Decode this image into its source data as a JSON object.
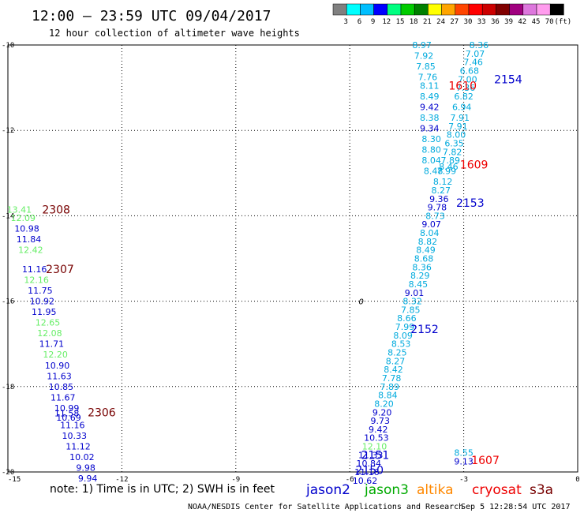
{
  "header": {
    "title": "12:00 – 23:59 UTC 09/04/2017",
    "subtitle": "12 hour collection of altimeter wave heights"
  },
  "colorbar": {
    "labels": [
      "3",
      "6",
      "9",
      "12",
      "15",
      "18",
      "21",
      "24",
      "27",
      "30",
      "33",
      "36",
      "39",
      "42",
      "45",
      "70",
      "(ft)"
    ],
    "colors": [
      "#808080",
      "#00ffff",
      "#00bfff",
      "#0000ff",
      "#00ff80",
      "#00cc00",
      "#008000",
      "#ffff00",
      "#ffa500",
      "#ff4500",
      "#ff0000",
      "#cc0000",
      "#800000",
      "#a0007f",
      "#dd77dd",
      "#ff9cee",
      "#000000"
    ]
  },
  "footer": {
    "note": "note: 1) Time is in UTC; 2) SWH is in feet",
    "credit": "NOAA/NESDIS Center for Satellite Applications and Research",
    "timestamp": "Sep  5 12:28:54 UTC 2017"
  },
  "legend": [
    {
      "name": "jason2",
      "color": "#0000cc"
    },
    {
      "name": "jason3",
      "color": "#00aa00"
    },
    {
      "name": "altika",
      "color": "#ff8800"
    },
    {
      "name": "cryosat",
      "color": "#ee0000"
    },
    {
      "name": "s3a",
      "color": "#770000"
    }
  ],
  "chart_data": {
    "type": "scatter",
    "title": "12:00 – 23:59 UTC 09/04/2017",
    "xlim": [
      -15,
      0
    ],
    "ylim": [
      -20,
      -10
    ],
    "x_ticks": [
      -15,
      -12,
      -9,
      -6,
      -3,
      0
    ],
    "y_ticks": [
      -10,
      -12,
      -14,
      -16,
      -18,
      -20
    ],
    "grid": true,
    "units": "ft",
    "symbols": [
      {
        "text": "0",
        "x": -5.7,
        "y": -16.0,
        "color": "#000000"
      }
    ],
    "track_labels": [
      {
        "text": "2308",
        "x": -14.1,
        "y": -13.85,
        "color": "#770000"
      },
      {
        "text": "2307",
        "x": -14.0,
        "y": -15.25,
        "color": "#770000"
      },
      {
        "text": "2306",
        "x": -12.9,
        "y": -18.6,
        "color": "#770000"
      },
      {
        "text": "1610",
        "x": -3.4,
        "y": -10.95,
        "color": "#ee0000"
      },
      {
        "text": "2154",
        "x": -2.2,
        "y": -10.8,
        "color": "#0000cc"
      },
      {
        "text": "1609",
        "x": -3.1,
        "y": -12.8,
        "color": "#ee0000"
      },
      {
        "text": "2153",
        "x": -3.2,
        "y": -13.7,
        "color": "#0000cc"
      },
      {
        "text": "2152",
        "x": -4.4,
        "y": -16.65,
        "color": "#0000cc"
      },
      {
        "text": "2151",
        "x": -5.7,
        "y": -19.6,
        "color": "#0000cc"
      },
      {
        "text": "2150",
        "x": -5.85,
        "y": -19.95,
        "color": "#0000cc"
      },
      {
        "text": "1607",
        "x": -2.8,
        "y": -19.72,
        "color": "#ee0000"
      }
    ],
    "series": [
      {
        "name": "2308",
        "points": [
          {
            "x": -14.7,
            "y": -13.85,
            "v": "13.41",
            "c": "#66ee66"
          },
          {
            "x": -14.6,
            "y": -14.05,
            "v": "12.09",
            "c": "#66ee66"
          },
          {
            "x": -14.5,
            "y": -14.3,
            "v": "10.98",
            "c": "#0000cc"
          },
          {
            "x": -14.45,
            "y": -14.55,
            "v": "11.84",
            "c": "#0000cc"
          },
          {
            "x": -14.4,
            "y": -14.8,
            "v": "12.42",
            "c": "#66ee66"
          }
        ]
      },
      {
        "name": "2307",
        "points": [
          {
            "x": -14.3,
            "y": -15.25,
            "v": "11.16",
            "c": "#0000cc"
          },
          {
            "x": -14.25,
            "y": -15.5,
            "v": "12.16",
            "c": "#66ee66"
          },
          {
            "x": -14.15,
            "y": -15.75,
            "v": "11.75",
            "c": "#0000cc"
          },
          {
            "x": -14.1,
            "y": -16.0,
            "v": "10.92",
            "c": "#0000cc"
          },
          {
            "x": -14.05,
            "y": -16.25,
            "v": "11.95",
            "c": "#0000cc"
          },
          {
            "x": -13.95,
            "y": -16.5,
            "v": "12.65",
            "c": "#66ee66"
          },
          {
            "x": -13.9,
            "y": -16.75,
            "v": "12.08",
            "c": "#66ee66"
          },
          {
            "x": -13.85,
            "y": -17.0,
            "v": "11.71",
            "c": "#0000cc"
          },
          {
            "x": -13.75,
            "y": -17.25,
            "v": "12.20",
            "c": "#66ee66"
          },
          {
            "x": -13.7,
            "y": -17.5,
            "v": "10.90",
            "c": "#0000cc"
          },
          {
            "x": -13.65,
            "y": -17.75,
            "v": "11.63",
            "c": "#0000cc"
          },
          {
            "x": -13.6,
            "y": -18.0,
            "v": "10.85",
            "c": "#0000cc"
          },
          {
            "x": -13.55,
            "y": -18.25,
            "v": "11.67",
            "c": "#0000cc"
          }
        ]
      },
      {
        "name": "2306",
        "points": [
          {
            "x": -13.45,
            "y": -18.5,
            "v": "10.99",
            "c": "#0000cc"
          },
          {
            "x": -13.4,
            "y": -18.72,
            "v": "10.69",
            "c": "#0000cc"
          },
          {
            "x": -13.45,
            "y": -18.62,
            "v": "11.58",
            "c": "#0000cc"
          },
          {
            "x": -13.3,
            "y": -18.9,
            "v": "11.16",
            "c": "#0000cc"
          },
          {
            "x": -13.25,
            "y": -19.15,
            "v": "10.33",
            "c": "#0000cc"
          },
          {
            "x": -13.15,
            "y": -19.4,
            "v": "11.12",
            "c": "#0000cc"
          },
          {
            "x": -13.05,
            "y": -19.65,
            "v": "10.02",
            "c": "#0000cc"
          },
          {
            "x": -12.95,
            "y": -19.9,
            "v": "9.98",
            "c": "#0000cc"
          },
          {
            "x": -12.9,
            "y": -20.15,
            "v": "9.94",
            "c": "#0000cc"
          }
        ]
      },
      {
        "name": "2154",
        "points": [
          {
            "x": -2.6,
            "y": -10.0,
            "v": "8.36",
            "c": "#00aadd"
          },
          {
            "x": -2.7,
            "y": -10.2,
            "v": "7.07",
            "c": "#00aadd"
          },
          {
            "x": -2.75,
            "y": -10.4,
            "v": "7.46",
            "c": "#00aadd"
          },
          {
            "x": -2.85,
            "y": -10.6,
            "v": "6.68",
            "c": "#00aadd"
          },
          {
            "x": -2.9,
            "y": -10.8,
            "v": "7.00",
            "c": "#00aadd"
          },
          {
            "x": -2.95,
            "y": -11.0,
            "v": "7.36",
            "c": "#00aadd"
          },
          {
            "x": -3.0,
            "y": -11.2,
            "v": "6.82",
            "c": "#00aadd"
          },
          {
            "x": -3.05,
            "y": -11.45,
            "v": "6.94",
            "c": "#00aadd"
          },
          {
            "x": -3.1,
            "y": -11.7,
            "v": "7.91",
            "c": "#00aadd"
          },
          {
            "x": -3.15,
            "y": -11.9,
            "v": "7.91",
            "c": "#00aadd"
          },
          {
            "x": -3.2,
            "y": -12.1,
            "v": "8.00",
            "c": "#00aadd"
          },
          {
            "x": -3.25,
            "y": -12.3,
            "v": "6.35",
            "c": "#00aadd"
          },
          {
            "x": -3.3,
            "y": -12.5,
            "v": "7.82",
            "c": "#00aadd"
          },
          {
            "x": -3.35,
            "y": -12.7,
            "v": "7.89",
            "c": "#00aadd"
          },
          {
            "x": -3.4,
            "y": -12.85,
            "v": "8.46",
            "c": "#00aadd"
          },
          {
            "x": -3.45,
            "y": -12.95,
            "v": "7.99",
            "c": "#00aadd"
          }
        ]
      },
      {
        "name": "1610",
        "points": [
          {
            "x": -4.1,
            "y": -10.0,
            "v": "8.97",
            "c": "#00aadd"
          },
          {
            "x": -4.05,
            "y": -10.25,
            "v": "7.92",
            "c": "#00aadd"
          },
          {
            "x": -4.0,
            "y": -10.5,
            "v": "7.85",
            "c": "#00aadd"
          },
          {
            "x": -3.95,
            "y": -10.75,
            "v": "7.76",
            "c": "#00aadd"
          },
          {
            "x": -3.9,
            "y": -10.95,
            "v": "8.11",
            "c": "#00aadd"
          },
          {
            "x": -3.9,
            "y": -11.2,
            "v": "8.49",
            "c": "#00aadd"
          },
          {
            "x": -3.9,
            "y": -11.45,
            "v": "9.42",
            "c": "#0000cc"
          },
          {
            "x": -3.9,
            "y": -11.7,
            "v": "8.38",
            "c": "#00aadd"
          },
          {
            "x": -3.9,
            "y": -11.95,
            "v": "9.34",
            "c": "#0000cc"
          },
          {
            "x": -3.85,
            "y": -12.2,
            "v": "8.30",
            "c": "#00aadd"
          },
          {
            "x": -3.85,
            "y": -12.45,
            "v": "8.80",
            "c": "#00aadd"
          },
          {
            "x": -3.85,
            "y": -12.7,
            "v": "8.04",
            "c": "#00aadd"
          },
          {
            "x": -3.8,
            "y": -12.95,
            "v": "8.48",
            "c": "#00aadd"
          }
        ]
      },
      {
        "name": "2153",
        "points": [
          {
            "x": -3.55,
            "y": -13.2,
            "v": "8.12",
            "c": "#00aadd"
          },
          {
            "x": -3.6,
            "y": -13.4,
            "v": "8.27",
            "c": "#00aadd"
          },
          {
            "x": -3.65,
            "y": -13.6,
            "v": "9.36",
            "c": "#0000cc"
          },
          {
            "x": -3.7,
            "y": -13.8,
            "v": "9.78",
            "c": "#0000cc"
          },
          {
            "x": -3.75,
            "y": -14.0,
            "v": "8.73",
            "c": "#00aadd"
          },
          {
            "x": -3.85,
            "y": -14.2,
            "v": "9.07",
            "c": "#0000cc"
          },
          {
            "x": -3.9,
            "y": -14.4,
            "v": "8.04",
            "c": "#00aadd"
          },
          {
            "x": -3.95,
            "y": -14.6,
            "v": "8.82",
            "c": "#00aadd"
          },
          {
            "x": -4.0,
            "y": -14.8,
            "v": "8.49",
            "c": "#00aadd"
          },
          {
            "x": -4.05,
            "y": -15.0,
            "v": "8.68",
            "c": "#00aadd"
          },
          {
            "x": -4.1,
            "y": -15.2,
            "v": "8.36",
            "c": "#00aadd"
          },
          {
            "x": -4.15,
            "y": -15.4,
            "v": "8.29",
            "c": "#00aadd"
          },
          {
            "x": -4.2,
            "y": -15.6,
            "v": "8.45",
            "c": "#00aadd"
          },
          {
            "x": -4.3,
            "y": -15.8,
            "v": "9.01",
            "c": "#0000cc"
          },
          {
            "x": -4.35,
            "y": -16.0,
            "v": "8.32",
            "c": "#00aadd"
          },
          {
            "x": -4.4,
            "y": -16.2,
            "v": "7.85",
            "c": "#00aadd"
          }
        ]
      },
      {
        "name": "2152",
        "points": [
          {
            "x": -4.5,
            "y": -16.4,
            "v": "8.66",
            "c": "#00aadd"
          },
          {
            "x": -4.55,
            "y": -16.6,
            "v": "7.99",
            "c": "#00aadd"
          },
          {
            "x": -4.6,
            "y": -16.8,
            "v": "8.09",
            "c": "#00aadd"
          },
          {
            "x": -4.65,
            "y": -17.0,
            "v": "8.53",
            "c": "#00aadd"
          },
          {
            "x": -4.75,
            "y": -17.2,
            "v": "8.25",
            "c": "#00aadd"
          },
          {
            "x": -4.8,
            "y": -17.4,
            "v": "8.27",
            "c": "#00aadd"
          },
          {
            "x": -4.85,
            "y": -17.6,
            "v": "8.42",
            "c": "#00aadd"
          },
          {
            "x": -4.9,
            "y": -17.8,
            "v": "7.78",
            "c": "#00aadd"
          },
          {
            "x": -4.95,
            "y": -18.0,
            "v": "7.89",
            "c": "#00aadd"
          },
          {
            "x": -5.0,
            "y": -18.2,
            "v": "8.84",
            "c": "#00aadd"
          },
          {
            "x": -5.1,
            "y": -18.4,
            "v": "8.20",
            "c": "#00aadd"
          }
        ]
      },
      {
        "name": "2151",
        "points": [
          {
            "x": -5.15,
            "y": -18.6,
            "v": "9.20",
            "c": "#0000cc"
          },
          {
            "x": -5.2,
            "y": -18.8,
            "v": "9.73",
            "c": "#0000cc"
          },
          {
            "x": -5.25,
            "y": -19.0,
            "v": "9.42",
            "c": "#0000cc"
          },
          {
            "x": -5.3,
            "y": -19.2,
            "v": "10.53",
            "c": "#0000cc"
          },
          {
            "x": -5.35,
            "y": -19.4,
            "v": "12.10",
            "c": "#66ee66"
          },
          {
            "x": -5.45,
            "y": -19.6,
            "v": "11.33",
            "c": "#0000cc"
          },
          {
            "x": -5.5,
            "y": -19.8,
            "v": "10.84",
            "c": "#0000cc"
          },
          {
            "x": -5.55,
            "y": -20.0,
            "v": "11.16",
            "c": "#0000cc"
          },
          {
            "x": -5.6,
            "y": -20.2,
            "v": "10.62",
            "c": "#0000cc"
          }
        ]
      },
      {
        "name": "1607",
        "points": [
          {
            "x": -3.0,
            "y": -19.55,
            "v": "8.55",
            "c": "#00aadd"
          },
          {
            "x": -3.0,
            "y": -19.75,
            "v": "9.13",
            "c": "#0000cc"
          }
        ]
      }
    ]
  }
}
